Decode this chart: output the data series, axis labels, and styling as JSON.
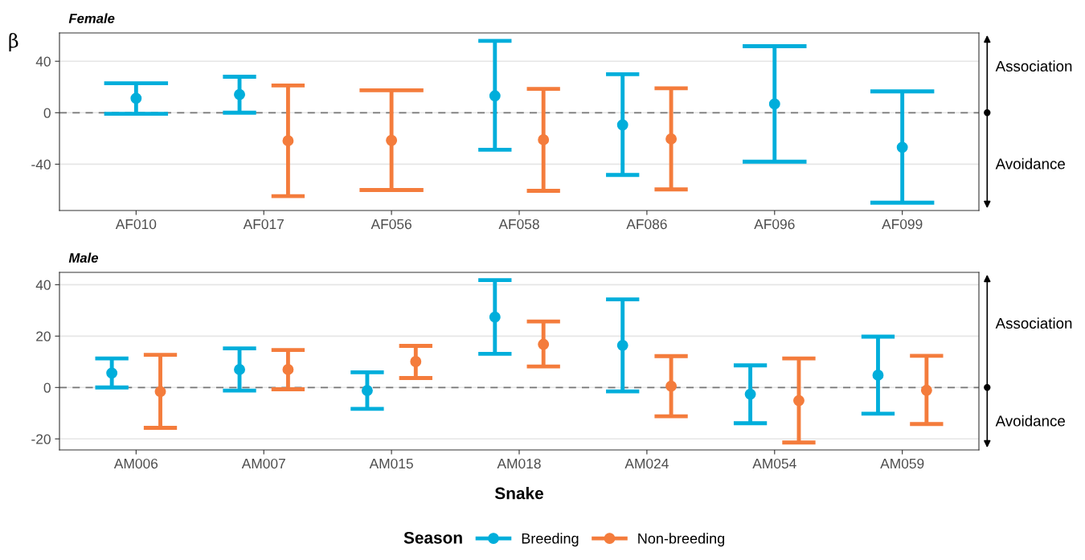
{
  "chart_data": [
    {
      "type": "scatter",
      "title": "Female",
      "ylabel": "β",
      "categories": [
        "AF010",
        "AF017",
        "AF056",
        "AF058",
        "AF086",
        "AF096",
        "AF099"
      ],
      "series": [
        {
          "color": "#00aedb",
          "values": [
            11.2,
            14.1,
            null,
            13.1,
            -9.5,
            6.8,
            -26.9
          ],
          "errors": [
            [
              -0.8,
              22.9
            ],
            [
              0,
              28
            ],
            null,
            [
              -28.8,
              55.8
            ],
            [
              -48.4,
              29.9
            ],
            [
              -38.1,
              51.7
            ],
            [
              -69.9,
              16.6
            ]
          ]
        },
        {
          "color": "#f47c3c",
          "values": [
            null,
            -21.8,
            -21.5,
            -21,
            -20.4,
            null,
            null
          ],
          "errors": [
            null,
            [
              -64.8,
              21.2
            ],
            [
              -60.1,
              17.4
            ],
            [
              -60.7,
              18.5
            ],
            [
              -59.6,
              19
            ],
            null,
            null
          ]
        }
      ],
      "ylim": [
        -76,
        62
      ],
      "yticks": [
        -40,
        0,
        40
      ],
      "grid": "y",
      "marker": "circle",
      "ref_lines": [
        {
          "axis": "y",
          "value": 0,
          "color": "#777777",
          "line_style": "dashed"
        }
      ],
      "annotations": [
        "Association",
        "Avoidance"
      ]
    },
    {
      "type": "scatter",
      "title": "Male",
      "xlabel": "Snake",
      "legend_title": "Season",
      "categories": [
        "AM006",
        "AM007",
        "AM015",
        "AM018",
        "AM024",
        "AM054",
        "AM059"
      ],
      "series": [
        {
          "name": "Breeding",
          "color": "#00aedb",
          "values": [
            5.6,
            7,
            -1.2,
            27.4,
            16.4,
            -2.6,
            4.8
          ],
          "errors": [
            [
              0,
              11.3
            ],
            [
              -1.2,
              15.2
            ],
            [
              -8.3,
              5.9
            ],
            [
              13.1,
              41.8
            ],
            [
              -1.5,
              34.3
            ],
            [
              -13.9,
              8.6
            ],
            [
              -10.2,
              19.8
            ]
          ]
        },
        {
          "name": "Non-breeding",
          "color": "#f47c3c",
          "values": [
            -1.6,
            7,
            10.1,
            16.8,
            0.5,
            -5.1,
            -1.1
          ],
          "errors": [
            [
              -15.7,
              12.7
            ],
            [
              -0.7,
              14.6
            ],
            [
              3.7,
              16.2
            ],
            [
              8.2,
              25.7
            ],
            [
              -11.2,
              12.2
            ],
            [
              -21.4,
              11.3
            ],
            [
              -14.2,
              12.3
            ]
          ]
        }
      ],
      "ylim": [
        -24.3,
        44.8
      ],
      "yticks": [
        -20,
        0,
        20,
        40
      ],
      "grid": "y",
      "marker": "circle",
      "legend": "bottom",
      "ref_lines": [
        {
          "axis": "y",
          "value": 0,
          "color": "#777777",
          "line_style": "dashed"
        }
      ],
      "annotations": [
        "Association",
        "Avoidance"
      ]
    }
  ]
}
